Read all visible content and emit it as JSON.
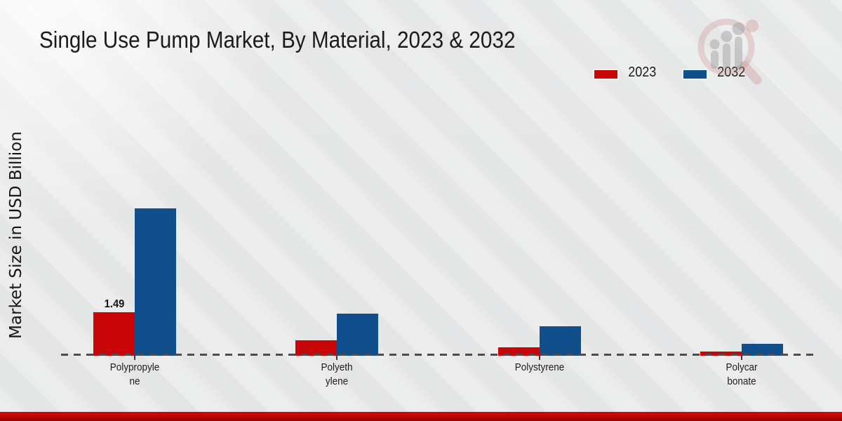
{
  "chart_data": {
    "type": "bar",
    "title": "Single Use Pump Market, By Material, 2023 & 2032",
    "xlabel": "",
    "ylabel": "Market Size in USD Billion",
    "ylim": [
      0,
      5.5
    ],
    "grid": false,
    "legend_position": "top-right",
    "baseline_style": "dashed",
    "categories": [
      "Polypropylene",
      "Polyethylene",
      "Polystyrene",
      "Polycarbonate"
    ],
    "category_label_lines": [
      [
        "Polypropyle",
        "ne"
      ],
      [
        "Polyeth",
        "ylene"
      ],
      [
        "Polystyrene"
      ],
      [
        "Polycar",
        "bonate"
      ]
    ],
    "series": [
      {
        "name": "2023",
        "color": "#c90708",
        "values": [
          1.49,
          0.52,
          0.29,
          0.14
        ]
      },
      {
        "name": "2032",
        "color": "#114e8c",
        "values": [
          5.05,
          1.45,
          1.01,
          0.41
        ]
      }
    ],
    "annotations": [
      {
        "series": "2023",
        "category_index": 0,
        "text": "1.49"
      }
    ]
  },
  "branding": {
    "watermark_icon": "magnifier-growth-chart-logo",
    "bottom_bar_color": "#b50505"
  }
}
